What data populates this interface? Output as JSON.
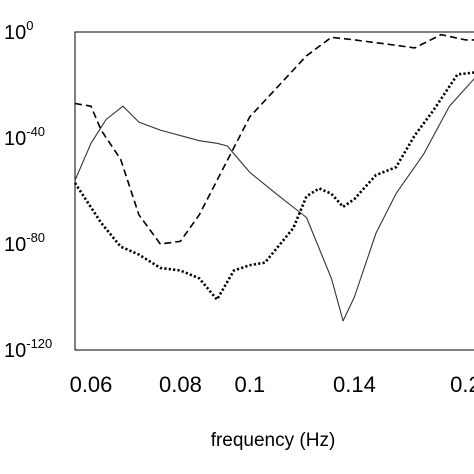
{
  "chart_data": {
    "type": "line",
    "xlabel": "frequency (Hz)",
    "ylabel": "",
    "title": "",
    "x_scale": "log",
    "y_scale": "log",
    "xlim": [
      0.057,
      0.22
    ],
    "ylim": [
      1e-120,
      1.0
    ],
    "grid": false,
    "legend": "none",
    "x_ticks": [
      {
        "value": 0.06,
        "label": "0.06"
      },
      {
        "value": 0.08,
        "label": "0.08"
      },
      {
        "value": 0.1,
        "label": "0.1"
      },
      {
        "value": 0.14,
        "label": "0.14"
      },
      {
        "value": 0.2,
        "label": "0.2"
      }
    ],
    "y_ticks": [
      {
        "value": 0,
        "base": "10",
        "exp": "0"
      },
      {
        "value": -40,
        "base": "10",
        "exp": "-40"
      },
      {
        "value": -80,
        "base": "10",
        "exp": "-80"
      },
      {
        "value": -120,
        "base": "10",
        "exp": "-120"
      }
    ],
    "series": [
      {
        "style": "solid",
        "color": "#333333",
        "x": [
          0.057,
          0.06,
          0.063,
          0.0665,
          0.07,
          0.075,
          0.085,
          0.09,
          0.093,
          0.1,
          0.11,
          0.12,
          0.13,
          0.135,
          0.14,
          0.15,
          0.16,
          0.175,
          0.19,
          0.21,
          0.22
        ],
        "log10_y": [
          -56,
          -42,
          -33,
          -28,
          -34,
          -37,
          -41,
          -42,
          -43,
          -53,
          -62,
          -70,
          -93,
          -109,
          -100,
          -76,
          -61,
          -46,
          -28,
          -15,
          -13
        ]
      },
      {
        "style": "dashed",
        "color": "#000000",
        "x": [
          0.057,
          0.06,
          0.062,
          0.066,
          0.07,
          0.075,
          0.08,
          0.085,
          0.09,
          0.1,
          0.11,
          0.12,
          0.13,
          0.14,
          0.16,
          0.17,
          0.185,
          0.2,
          0.22
        ],
        "log10_y": [
          -27,
          -28,
          -37,
          -48,
          -69,
          -80,
          -79,
          -69,
          -56,
          -32,
          -20,
          -9,
          -2,
          -3,
          -5,
          -6,
          -1,
          -3,
          -3
        ]
      },
      {
        "style": "dotted",
        "color": "#000000",
        "x": [
          0.057,
          0.062,
          0.066,
          0.07,
          0.075,
          0.08,
          0.085,
          0.09,
          0.095,
          0.1,
          0.105,
          0.115,
          0.12,
          0.125,
          0.13,
          0.135,
          0.14,
          0.15,
          0.16,
          0.17,
          0.18,
          0.195,
          0.21,
          0.22
        ],
        "log10_y": [
          -57,
          -72,
          -81,
          -84,
          -89,
          -90,
          -93,
          -101,
          -90,
          -88,
          -87,
          -74,
          -62,
          -59,
          -61,
          -66,
          -63,
          -54,
          -51,
          -39,
          -30,
          -16,
          -15,
          -17
        ]
      }
    ]
  }
}
